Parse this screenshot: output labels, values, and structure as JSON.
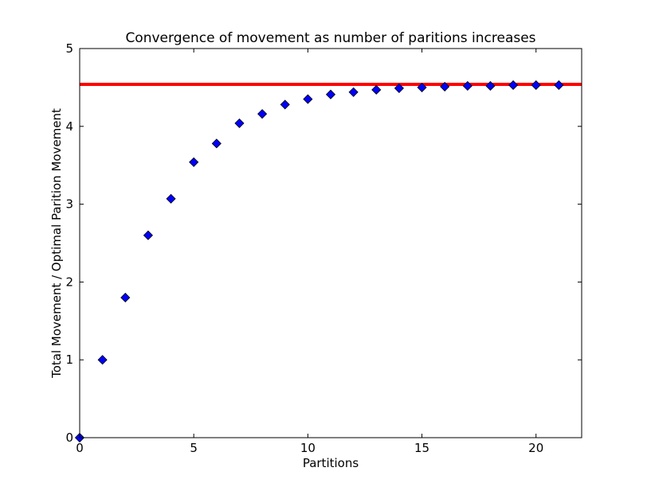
{
  "chart_data": {
    "type": "scatter",
    "title": "Convergence of movement as number of paritions increases",
    "xlabel": "Partitions",
    "ylabel": "Total Movement / Optimal Parition Movement",
    "xlim": [
      0,
      22
    ],
    "ylim": [
      0,
      5
    ],
    "xticks": [
      0,
      5,
      10,
      15,
      20
    ],
    "yticks": [
      0,
      1,
      2,
      3,
      4,
      5
    ],
    "grid": false,
    "series": [
      {
        "marker": "diamond",
        "color": "#0000ff",
        "x": [
          0,
          1,
          2,
          3,
          4,
          5,
          6,
          7,
          8,
          9,
          10,
          11,
          12,
          13,
          14,
          15,
          16,
          17,
          18,
          19,
          20,
          21
        ],
        "y": [
          0.0,
          1.0,
          1.8,
          2.6,
          3.07,
          3.54,
          3.78,
          4.04,
          4.16,
          4.28,
          4.35,
          4.41,
          4.44,
          4.47,
          4.49,
          4.5,
          4.51,
          4.52,
          4.52,
          4.53,
          4.53,
          4.53
        ]
      }
    ],
    "reference_line": {
      "orientation": "horizontal",
      "y": 4.54,
      "color": "#ff0000"
    }
  }
}
